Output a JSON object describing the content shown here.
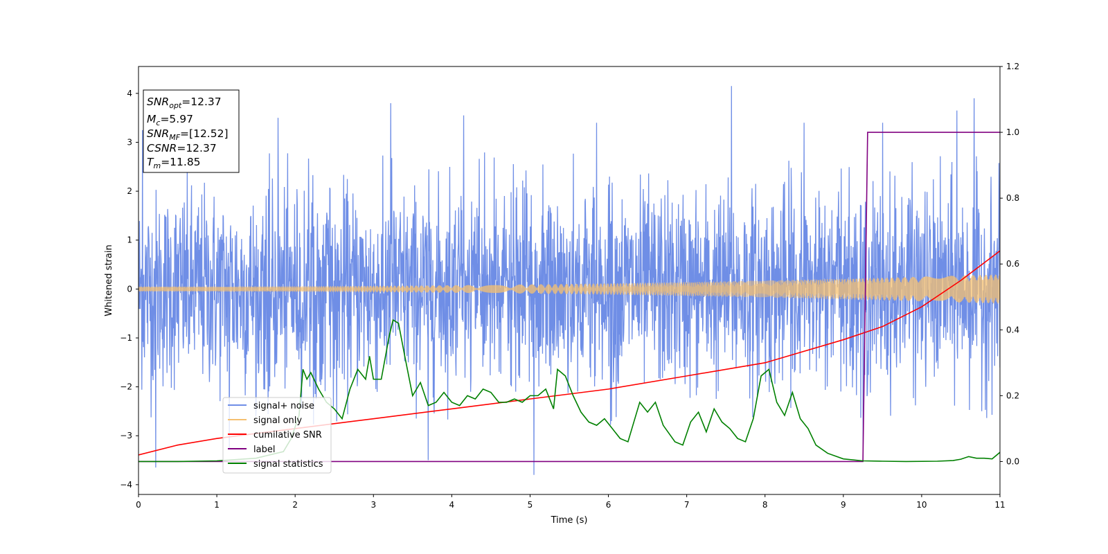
{
  "chart_data": {
    "type": "line",
    "xlabel": "Time (s)",
    "ylabel": "Whitened strain",
    "xlim": [
      0,
      11
    ],
    "ylim": [
      -4.2,
      4.55
    ],
    "ylim_right": [
      -0.1,
      1.2
    ],
    "x_ticks": [
      0,
      1,
      2,
      3,
      4,
      5,
      6,
      7,
      8,
      9,
      10,
      11
    ],
    "y_ticks": [
      -4,
      -3,
      -2,
      -1,
      0,
      1,
      2,
      3,
      4
    ],
    "y_ticks_right": [
      0.0,
      0.2,
      0.4,
      0.6,
      0.8,
      1.0,
      1.2
    ],
    "legend_position": "lower-left",
    "series": [
      {
        "name": "signal+ noise",
        "color": "#6f8ee6",
        "axis": "left",
        "kind": "noise",
        "noise_std": 1.0,
        "peaks": [
          [
            0.05,
            3.25
          ],
          [
            0.22,
            -3.65
          ],
          [
            1.07,
            1.0
          ],
          [
            1.16,
            -3.25
          ],
          [
            1.78,
            3.5
          ],
          [
            3.22,
            3.8
          ],
          [
            3.7,
            -3.5
          ],
          [
            4.15,
            3.55
          ],
          [
            5.05,
            -3.8
          ],
          [
            5.85,
            3.4
          ],
          [
            7.57,
            4.15
          ],
          [
            8.5,
            3.4
          ],
          [
            9.25,
            -3.35
          ],
          [
            9.5,
            3.4
          ],
          [
            10.45,
            3.65
          ],
          [
            10.67,
            3.9
          ]
        ]
      },
      {
        "name": "signal only",
        "color": "#f5c070",
        "axis": "left",
        "kind": "chirp",
        "amplitude_start": 0.05,
        "amplitude_end": 0.3
      },
      {
        "name": "cumilative SNR",
        "color": "#ff0000",
        "axis": "right",
        "x": [
          0,
          0.5,
          1,
          2,
          3,
          4,
          5,
          6,
          7,
          8,
          9,
          9.5,
          10,
          10.5,
          11
        ],
        "values": [
          0.02,
          0.05,
          0.07,
          0.1,
          0.13,
          0.16,
          0.19,
          0.22,
          0.26,
          0.3,
          0.37,
          0.41,
          0.47,
          0.55,
          0.64
        ]
      },
      {
        "name": "label",
        "color": "#800080",
        "axis": "right",
        "x": [
          0,
          9.25,
          9.31,
          11
        ],
        "values": [
          0,
          0,
          1,
          1
        ]
      },
      {
        "name": "signal statistics",
        "color": "#008000",
        "axis": "right",
        "x": [
          0,
          0.5,
          1,
          1.5,
          1.85,
          1.95,
          2.05,
          2.1,
          2.15,
          2.2,
          2.3,
          2.4,
          2.5,
          2.6,
          2.7,
          2.8,
          2.9,
          2.95,
          3.0,
          3.1,
          3.2,
          3.25,
          3.32,
          3.4,
          3.5,
          3.6,
          3.7,
          3.8,
          3.9,
          4.0,
          4.1,
          4.2,
          4.3,
          4.4,
          4.5,
          4.6,
          4.7,
          4.8,
          4.9,
          5.0,
          5.1,
          5.2,
          5.3,
          5.35,
          5.45,
          5.55,
          5.65,
          5.75,
          5.85,
          5.95,
          6.05,
          6.15,
          6.25,
          6.4,
          6.5,
          6.6,
          6.7,
          6.85,
          6.95,
          7.05,
          7.15,
          7.25,
          7.35,
          7.45,
          7.55,
          7.65,
          7.75,
          7.85,
          7.95,
          8.05,
          8.15,
          8.25,
          8.35,
          8.45,
          8.55,
          8.65,
          8.8,
          9.0,
          9.25,
          9.5,
          9.8,
          10.2,
          10.4,
          10.5,
          10.6,
          10.7,
          10.8,
          10.9,
          11.0
        ],
        "values": [
          0,
          0,
          0.002,
          0.01,
          0.03,
          0.07,
          0.14,
          0.28,
          0.25,
          0.27,
          0.22,
          0.18,
          0.16,
          0.13,
          0.22,
          0.28,
          0.25,
          0.32,
          0.25,
          0.25,
          0.38,
          0.43,
          0.42,
          0.32,
          0.2,
          0.24,
          0.17,
          0.18,
          0.21,
          0.18,
          0.17,
          0.2,
          0.19,
          0.22,
          0.21,
          0.18,
          0.18,
          0.19,
          0.18,
          0.2,
          0.2,
          0.22,
          0.16,
          0.28,
          0.26,
          0.2,
          0.15,
          0.12,
          0.11,
          0.13,
          0.1,
          0.07,
          0.06,
          0.18,
          0.15,
          0.18,
          0.11,
          0.06,
          0.05,
          0.12,
          0.15,
          0.09,
          0.16,
          0.12,
          0.1,
          0.07,
          0.06,
          0.13,
          0.26,
          0.28,
          0.18,
          0.14,
          0.21,
          0.13,
          0.1,
          0.05,
          0.025,
          0.008,
          0.002,
          0.001,
          0,
          0.001,
          0.003,
          0.007,
          0.015,
          0.01,
          0.01,
          0.008,
          0.028
        ]
      }
    ],
    "annotation": [
      {
        "main": "SNR",
        "sub": "opt",
        "value": "=12.37"
      },
      {
        "main": "M",
        "sub": "c",
        "value": "=5.97"
      },
      {
        "main": "SNR",
        "sub": "MF",
        "value": "=[12.52]"
      },
      {
        "main": "CSNR",
        "sub": "",
        "value": "=12.37"
      },
      {
        "main": "T",
        "sub": "m",
        "value": "=11.85"
      }
    ]
  }
}
